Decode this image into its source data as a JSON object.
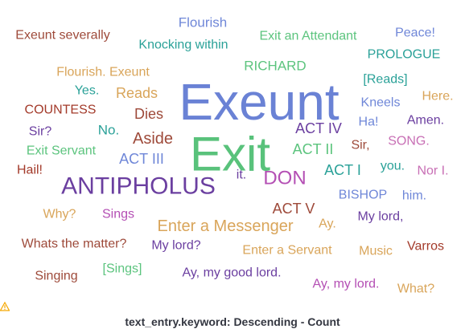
{
  "chart_data": {
    "type": "wordcloud",
    "title": "text_entry.keyword: Descending - Count",
    "colors": {
      "blue": "#6f87d8",
      "green": "#54b399",
      "brown": "#9e4a3a",
      "teal": "#2aa198",
      "ltgreen": "#5cc47e",
      "tan": "#d9a55a",
      "purple": "#6b3fa0",
      "magenta": "#b44fb4",
      "big_green": "#59c27b",
      "big_blue": "#6a82d5",
      "dark_brown": "#a33a2a",
      "mauve": "#c86fb5"
    },
    "words": [
      {
        "text": "Exeunt",
        "color": "#6a82d5",
        "size": 64
      },
      {
        "text": "Exit",
        "color": "#59c27b",
        "size": 60
      },
      {
        "text": "ANTIPHOLUS",
        "color": "#6b3fa0",
        "size": 30
      },
      {
        "text": "DON",
        "color": "#b44fb4",
        "size": 24
      },
      {
        "text": "Enter a Messenger",
        "color": "#d9a55a",
        "size": 20
      },
      {
        "text": "Aside",
        "color": "#9e4a3a",
        "size": 20
      },
      {
        "text": "ACT IV",
        "color": "#6b3fa0",
        "size": 18
      },
      {
        "text": "ACT II",
        "color": "#5cc47e",
        "size": 18
      },
      {
        "text": "ACT I",
        "color": "#2aa198",
        "size": 18
      },
      {
        "text": "ACT V",
        "color": "#9e4a3a",
        "size": 18
      },
      {
        "text": "RICHARD",
        "color": "#5cc47e",
        "size": 17
      },
      {
        "text": "Flourish",
        "color": "#6f87d8",
        "size": 17
      },
      {
        "text": "Exeunt severally",
        "color": "#9e4a3a",
        "size": 16
      },
      {
        "text": "Knocking within",
        "color": "#2aa198",
        "size": 16
      },
      {
        "text": "Exit an Attendant",
        "color": "#5cc47e",
        "size": 16
      },
      {
        "text": "Peace!",
        "color": "#6f87d8",
        "size": 16
      },
      {
        "text": "PROLOGUE",
        "color": "#2aa198",
        "size": 16
      },
      {
        "text": "Flourish. Exeunt",
        "color": "#d9a55a",
        "size": 16
      },
      {
        "text": "Yes.",
        "color": "#2aa198",
        "size": 16
      },
      {
        "text": "Reads",
        "color": "#d9a55a",
        "size": 18
      },
      {
        "text": "[Reads]",
        "color": "#2aa198",
        "size": 16
      },
      {
        "text": "Here.",
        "color": "#d9a55a",
        "size": 16
      },
      {
        "text": "COUNTESS",
        "color": "#a33a2a",
        "size": 16
      },
      {
        "text": "Dies",
        "color": "#9e4a3a",
        "size": 18
      },
      {
        "text": "Kneels",
        "color": "#6f87d8",
        "size": 16
      },
      {
        "text": "Amen.",
        "color": "#6b3fa0",
        "size": 16
      },
      {
        "text": "Sir?",
        "color": "#6b3fa0",
        "size": 16
      },
      {
        "text": "No.",
        "color": "#2aa198",
        "size": 17
      },
      {
        "text": "Ha!",
        "color": "#6f87d8",
        "size": 16
      },
      {
        "text": "SONG.",
        "color": "#c86fb5",
        "size": 16
      },
      {
        "text": "Exit Servant",
        "color": "#5cc47e",
        "size": 16
      },
      {
        "text": "Sir,",
        "color": "#9e4a3a",
        "size": 16
      },
      {
        "text": "ACT III",
        "color": "#6f87d8",
        "size": 18
      },
      {
        "text": "Hail!",
        "color": "#a33a2a",
        "size": 16
      },
      {
        "text": "it.",
        "color": "#6b3fa0",
        "size": 16
      },
      {
        "text": "you.",
        "color": "#2aa198",
        "size": 16
      },
      {
        "text": "Nor I.",
        "color": "#c86fb5",
        "size": 16
      },
      {
        "text": "BISHOP",
        "color": "#6f87d8",
        "size": 16
      },
      {
        "text": "him.",
        "color": "#6f87d8",
        "size": 16
      },
      {
        "text": "Why?",
        "color": "#d9a55a",
        "size": 16
      },
      {
        "text": "Sings",
        "color": "#b44fb4",
        "size": 16
      },
      {
        "text": "Ay.",
        "color": "#d9a55a",
        "size": 16
      },
      {
        "text": "My lord,",
        "color": "#6b3fa0",
        "size": 16
      },
      {
        "text": "Whats the matter?",
        "color": "#9e4a3a",
        "size": 16
      },
      {
        "text": "My lord?",
        "color": "#6b3fa0",
        "size": 16
      },
      {
        "text": "Enter a Servant",
        "color": "#d9a55a",
        "size": 16
      },
      {
        "text": "Music",
        "color": "#d9a55a",
        "size": 16
      },
      {
        "text": "Varros",
        "color": "#a33a2a",
        "size": 16
      },
      {
        "text": "Singing",
        "color": "#9e4a3a",
        "size": 16
      },
      {
        "text": "[Sings]",
        "color": "#5cc47e",
        "size": 16
      },
      {
        "text": "Ay, my good lord.",
        "color": "#6b3fa0",
        "size": 16
      },
      {
        "text": "Ay, my lord.",
        "color": "#b44fb4",
        "size": 16
      },
      {
        "text": "What?",
        "color": "#d9a55a",
        "size": 16
      }
    ]
  }
}
